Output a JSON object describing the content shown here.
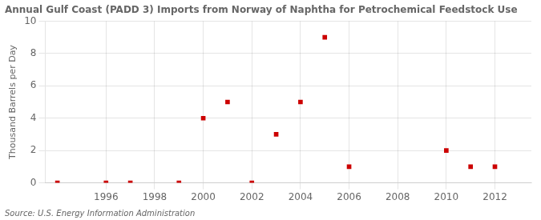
{
  "chart_data": {
    "type": "scatter",
    "title": "Annual Gulf Coast (PADD 3) Imports from Norway of Naphtha for Petrochemical Feedstock Use",
    "ylabel": "Thousand Barrels per Day",
    "source": "Source: U.S. Energy Information Administration",
    "x": [
      1994,
      1996,
      1997,
      1999,
      2000,
      2001,
      2002,
      2003,
      2004,
      2005,
      2006,
      2010,
      2011,
      2012
    ],
    "values": [
      0,
      0,
      0,
      0,
      4,
      5,
      0,
      3,
      5,
      9,
      1,
      2,
      1,
      1
    ],
    "color": "#cc0000",
    "marker": "square",
    "xlim": [
      1993.5,
      2013.5
    ],
    "ylim": [
      0,
      10
    ],
    "xticks": [
      1996,
      1998,
      2000,
      2002,
      2004,
      2006,
      2008,
      2010,
      2012
    ],
    "yticks": [
      0,
      2,
      4,
      6,
      8,
      10
    ],
    "grid": true
  }
}
